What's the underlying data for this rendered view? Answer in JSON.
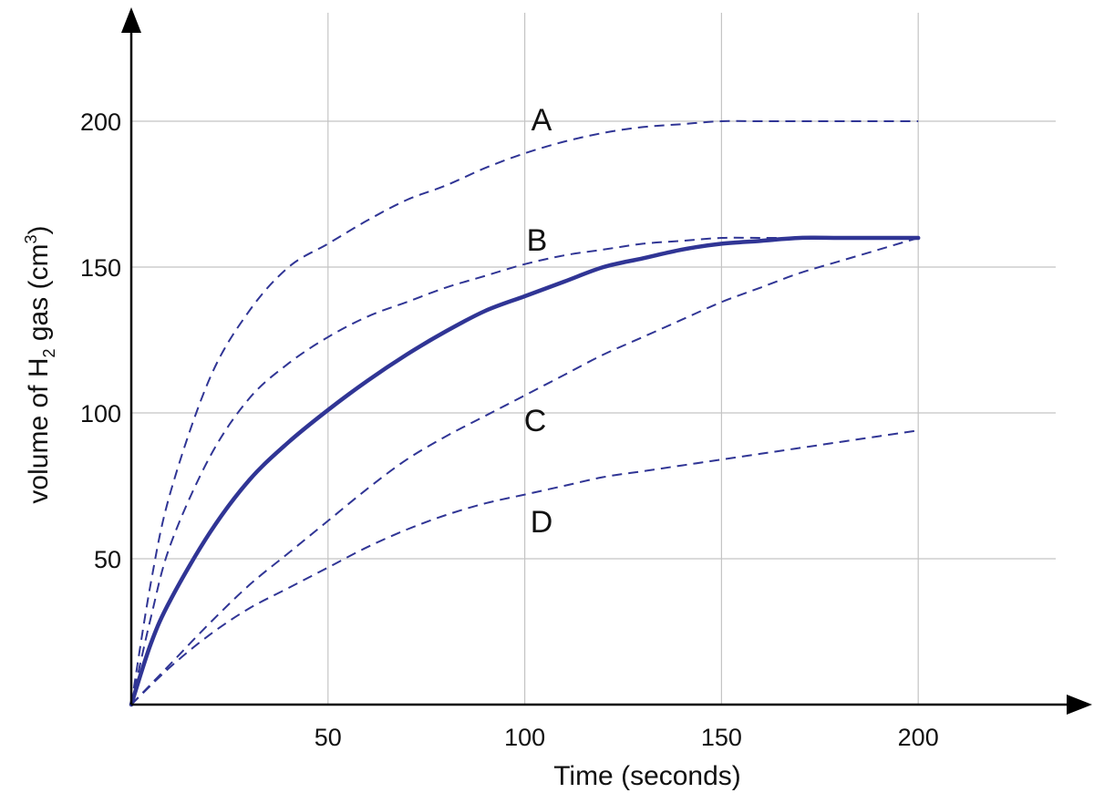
{
  "chart_data": {
    "type": "line",
    "xlabel": "Time (seconds)",
    "ylabel_parts": {
      "main": "volume of  H",
      "sub": "2",
      "after": " gas  (cm",
      "sup": "3",
      "end": ")"
    },
    "xlim": [
      0,
      250
    ],
    "ylim": [
      0,
      240
    ],
    "x_ticks": [
      50,
      100,
      150,
      200
    ],
    "y_ticks": [
      50,
      100,
      150,
      200
    ],
    "x_tick_labels": [
      "50",
      "100",
      "150",
      "200"
    ],
    "y_tick_labels": [
      "50",
      "100",
      "150",
      "200"
    ],
    "grid": true,
    "colors": {
      "curve": "#303595",
      "axis": "#000000",
      "grid": "#c4c4c4"
    },
    "series": [
      {
        "name": "A",
        "style": "dashed",
        "x": [
          0,
          5,
          10,
          20,
          30,
          40,
          50,
          60,
          70,
          80,
          90,
          100,
          110,
          120,
          130,
          140,
          150,
          160,
          170,
          180,
          190,
          200
        ],
        "y": [
          0,
          42,
          73,
          112,
          135,
          150,
          158,
          166,
          173,
          178,
          184,
          189,
          193,
          196,
          198,
          199,
          200,
          200,
          200,
          200,
          200,
          200
        ]
      },
      {
        "name": "B",
        "style": "dashed",
        "x": [
          0,
          5,
          10,
          20,
          30,
          40,
          50,
          60,
          70,
          80,
          90,
          100,
          110,
          120,
          130,
          140,
          150,
          160,
          170
        ],
        "y": [
          0,
          30,
          55,
          85,
          105,
          117,
          126,
          133,
          138,
          143,
          147,
          151,
          154,
          156,
          158,
          159,
          160,
          160,
          160
        ]
      },
      {
        "name": "",
        "style": "solid",
        "x": [
          0,
          5,
          10,
          20,
          30,
          40,
          50,
          60,
          70,
          80,
          90,
          100,
          110,
          120,
          130,
          140,
          150,
          160,
          170,
          180,
          190,
          200
        ],
        "y": [
          0,
          21,
          36,
          59,
          77,
          90,
          101,
          111,
          120,
          128,
          135,
          140,
          145,
          150,
          153,
          156,
          158,
          159,
          160,
          160,
          160,
          160
        ]
      },
      {
        "name": "C",
        "style": "dashed",
        "x": [
          0,
          10,
          20,
          30,
          40,
          50,
          60,
          70,
          80,
          90,
          100,
          110,
          120,
          130,
          140,
          150,
          160,
          170,
          180,
          190,
          200
        ],
        "y": [
          0,
          14,
          28,
          41,
          52,
          63,
          74,
          84,
          92,
          99,
          106,
          113,
          120,
          126,
          132,
          138,
          143,
          148,
          152,
          156,
          160
        ]
      },
      {
        "name": "D",
        "style": "dashed",
        "x": [
          0,
          10,
          20,
          30,
          40,
          50,
          60,
          70,
          80,
          90,
          100,
          110,
          120,
          130,
          140,
          150,
          160,
          170,
          180,
          190,
          200
        ],
        "y": [
          0,
          13,
          24,
          33,
          40,
          47,
          54,
          60,
          65,
          69,
          72,
          75,
          78,
          80,
          82,
          84,
          86,
          88,
          90,
          92,
          94
        ]
      }
    ]
  }
}
